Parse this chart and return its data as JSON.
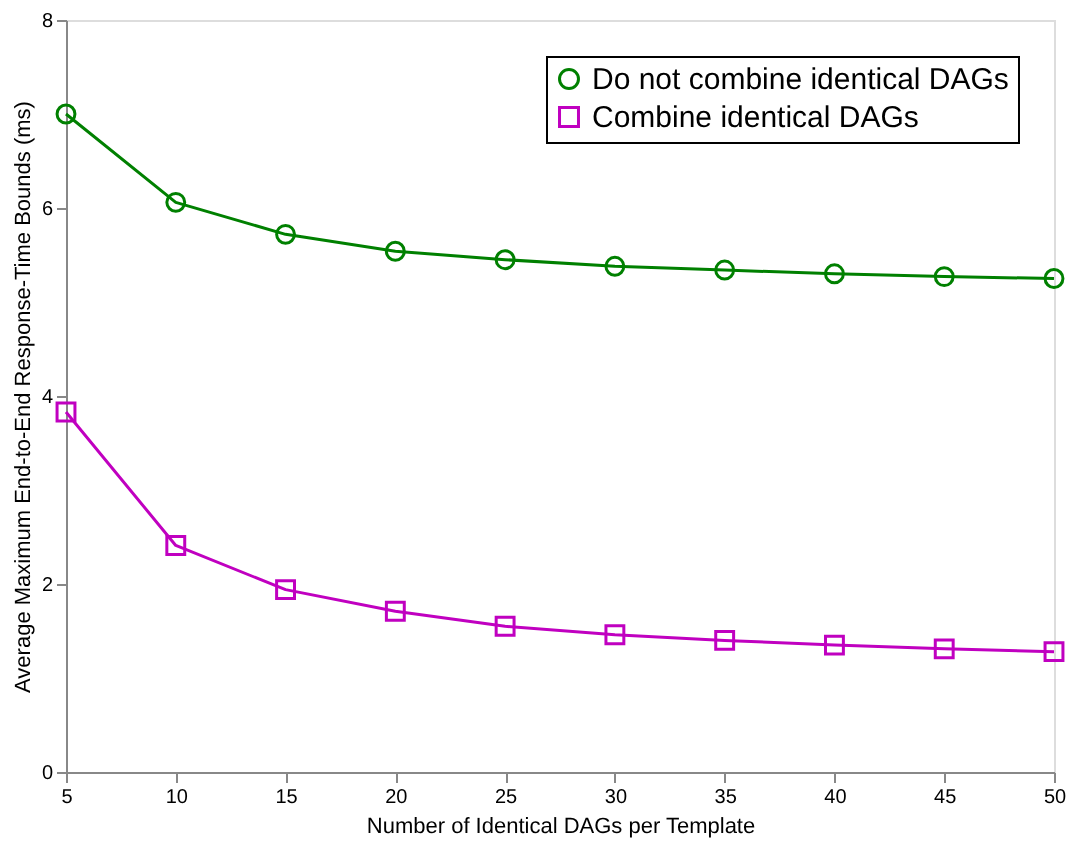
{
  "chart_data": {
    "type": "line",
    "xlabel": "Number of Identical DAGs per Template",
    "ylabel": "Average Maximum End-to-End Response-Time Bounds (ms)",
    "x": [
      5,
      10,
      15,
      20,
      25,
      30,
      35,
      40,
      45,
      50
    ],
    "series": [
      {
        "name": "Do not combine identical DAGs",
        "color": "#008000",
        "marker": "circle",
        "values": [
          7.0,
          6.06,
          5.72,
          5.54,
          5.45,
          5.38,
          5.34,
          5.3,
          5.27,
          5.25
        ]
      },
      {
        "name": "Combine identical DAGs",
        "color": "#c000c0",
        "marker": "square",
        "values": [
          3.83,
          2.41,
          1.94,
          1.71,
          1.55,
          1.46,
          1.4,
          1.35,
          1.31,
          1.28
        ]
      }
    ],
    "xlim": [
      5,
      50
    ],
    "xticks": [
      5,
      10,
      15,
      20,
      25,
      30,
      35,
      40,
      45,
      50
    ],
    "ylim": [
      0,
      8
    ],
    "yticks": [
      0,
      2,
      4,
      6,
      8
    ],
    "grid": false,
    "legend": "top right",
    "line_style": "solid"
  }
}
